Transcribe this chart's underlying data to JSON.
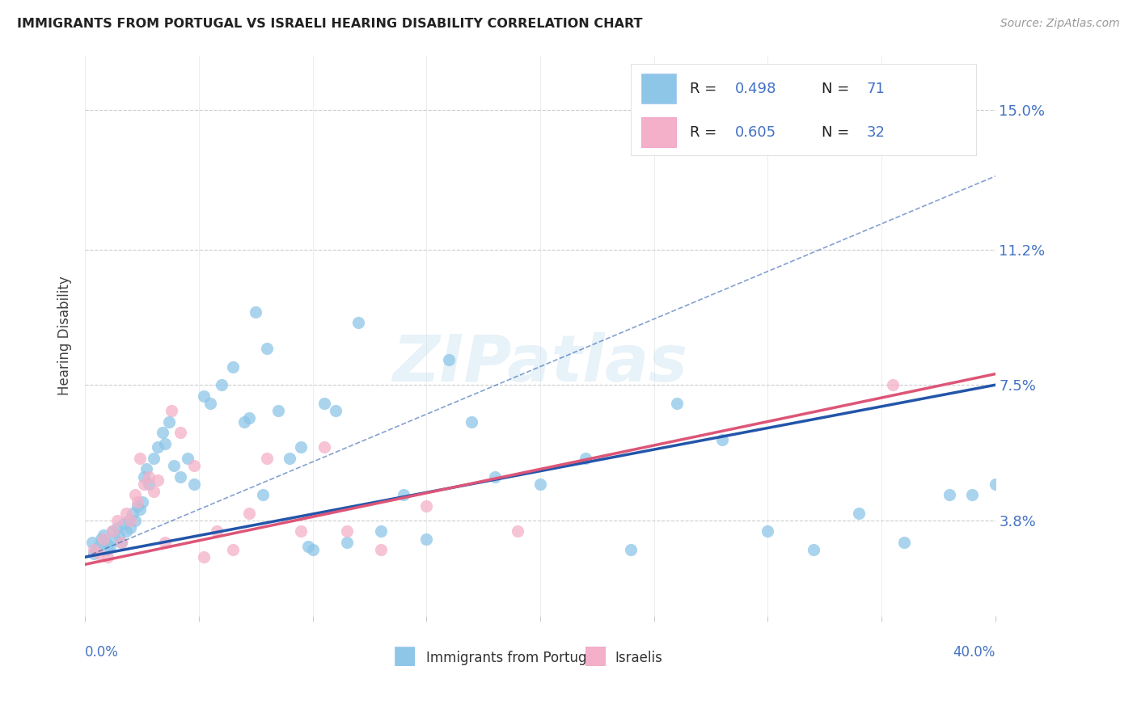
{
  "title": "IMMIGRANTS FROM PORTUGAL VS ISRAELI HEARING DISABILITY CORRELATION CHART",
  "source": "Source: ZipAtlas.com",
  "ylabel": "Hearing Disability",
  "ytick_labels": [
    "3.8%",
    "7.5%",
    "11.2%",
    "15.0%"
  ],
  "ytick_values": [
    3.8,
    7.5,
    11.2,
    15.0
  ],
  "xlim": [
    0.0,
    40.0
  ],
  "ylim": [
    1.2,
    16.5
  ],
  "color_blue": "#8ec6e8",
  "color_pink": "#f4b0c8",
  "color_line_blue": "#2255aa",
  "color_line_pink": "#dd5577",
  "color_text_blue": "#4472c4",
  "watermark": "ZIPatlas",
  "blue_scatter_x": [
    0.3,
    0.4,
    0.5,
    0.6,
    0.7,
    0.8,
    0.9,
    1.0,
    1.1,
    1.2,
    1.3,
    1.4,
    1.5,
    1.6,
    1.7,
    1.8,
    1.9,
    2.0,
    2.1,
    2.2,
    2.3,
    2.4,
    2.5,
    2.6,
    2.7,
    2.8,
    3.0,
    3.2,
    3.4,
    3.5,
    3.7,
    3.9,
    4.2,
    4.5,
    4.8,
    5.2,
    5.5,
    6.0,
    6.5,
    7.0,
    7.5,
    8.0,
    8.5,
    9.0,
    9.5,
    10.0,
    10.5,
    11.0,
    11.5,
    12.0,
    13.0,
    14.0,
    15.0,
    16.0,
    17.0,
    18.0,
    20.0,
    22.0,
    24.0,
    26.0,
    28.0,
    30.0,
    32.0,
    34.0,
    36.0,
    38.0,
    39.0,
    40.0,
    7.2,
    7.8,
    9.8
  ],
  "blue_scatter_y": [
    3.2,
    2.9,
    3.0,
    3.1,
    3.3,
    3.4,
    3.2,
    3.0,
    3.1,
    3.5,
    3.3,
    3.6,
    3.4,
    3.2,
    3.7,
    3.5,
    3.8,
    3.6,
    4.0,
    3.8,
    4.2,
    4.1,
    4.3,
    5.0,
    5.2,
    4.8,
    5.5,
    5.8,
    6.2,
    5.9,
    6.5,
    5.3,
    5.0,
    5.5,
    4.8,
    7.2,
    7.0,
    7.5,
    8.0,
    6.5,
    9.5,
    8.5,
    6.8,
    5.5,
    5.8,
    3.0,
    7.0,
    6.8,
    3.2,
    9.2,
    3.5,
    4.5,
    3.3,
    8.2,
    6.5,
    5.0,
    4.8,
    5.5,
    3.0,
    7.0,
    6.0,
    3.5,
    3.0,
    4.0,
    3.2,
    4.5,
    4.5,
    4.8,
    6.6,
    4.5,
    3.1
  ],
  "pink_scatter_x": [
    0.4,
    0.6,
    0.8,
    1.0,
    1.2,
    1.4,
    1.6,
    1.8,
    2.0,
    2.2,
    2.4,
    2.6,
    2.8,
    3.0,
    3.2,
    3.5,
    3.8,
    4.2,
    4.8,
    5.2,
    5.8,
    6.5,
    7.2,
    8.0,
    9.5,
    10.5,
    11.5,
    13.0,
    15.0,
    19.0,
    35.5,
    2.3
  ],
  "pink_scatter_y": [
    3.0,
    2.9,
    3.3,
    2.8,
    3.5,
    3.8,
    3.2,
    4.0,
    3.8,
    4.5,
    5.5,
    4.8,
    5.0,
    4.6,
    4.9,
    3.2,
    6.8,
    6.2,
    5.3,
    2.8,
    3.5,
    3.0,
    4.0,
    5.5,
    3.5,
    5.8,
    3.5,
    3.0,
    4.2,
    3.5,
    7.5,
    4.3
  ],
  "blue_line_y_start": 2.8,
  "blue_line_y_end": 7.5,
  "pink_line_y_start": 2.6,
  "pink_line_y_end": 7.8,
  "blue_dash_y_end": 13.2,
  "xtick_positions": [
    0,
    5,
    10,
    15,
    20,
    25,
    30,
    35,
    40
  ],
  "grid_color": "#cccccc"
}
